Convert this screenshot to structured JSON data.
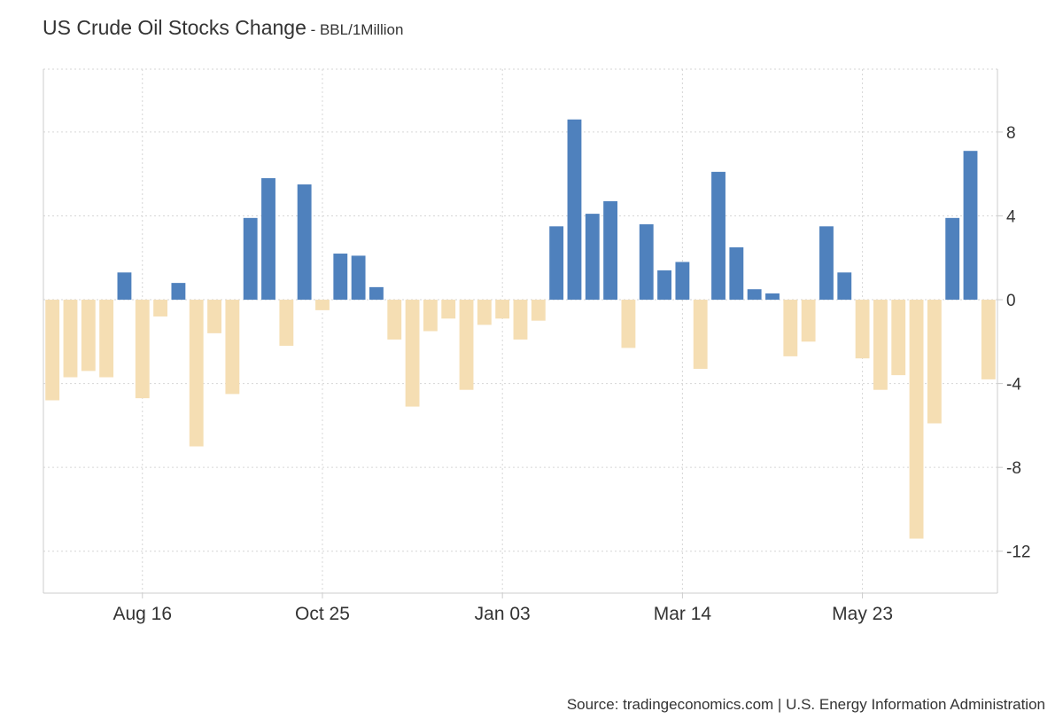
{
  "header": {
    "title": "US Crude Oil Stocks Change",
    "unit": " - BBL/1Million"
  },
  "footer": {
    "source": "Source: tradingeconomics.com | U.S. Energy Information Administration"
  },
  "colors": {
    "positive": "#4f81bd",
    "negative": "#f5deb3",
    "grid": "#d6d6d6",
    "axis": "#cccccc",
    "text": "#333333"
  },
  "chart_data": {
    "type": "bar",
    "title": "US Crude Oil Stocks Change",
    "ylabel": "BBL/1Million",
    "xlabel": "",
    "ylim": [
      -14,
      11
    ],
    "yticks": [
      8,
      4,
      0,
      -4,
      -8,
      -12
    ],
    "ytick_labels": [
      "8",
      "4",
      "0",
      "-4",
      "-8",
      "-12"
    ],
    "xtick_labels": [
      "Aug 16",
      "Oct 25",
      "Jan 03",
      "Mar 14",
      "May 23"
    ],
    "xtick_indices": [
      5,
      15,
      25,
      35,
      45
    ],
    "grid": true,
    "series": [
      {
        "name": "US Crude Oil Stocks Change",
        "values": [
          -4.8,
          -3.7,
          -3.4,
          -3.7,
          1.3,
          -4.7,
          -0.8,
          0.8,
          -7.0,
          -1.6,
          -4.5,
          3.9,
          5.8,
          -2.2,
          5.5,
          -0.5,
          2.2,
          2.1,
          0.6,
          -1.9,
          -5.1,
          -1.5,
          -0.9,
          -4.3,
          -1.2,
          -0.9,
          -1.9,
          -1.0,
          3.5,
          8.6,
          4.1,
          4.7,
          -2.3,
          3.6,
          1.4,
          1.8,
          -3.3,
          6.1,
          2.5,
          0.5,
          0.3,
          -2.7,
          -2.0,
          3.5,
          1.3,
          -2.8,
          -4.3,
          -3.6,
          -11.4,
          -5.9,
          3.9,
          7.1,
          -3.8
        ]
      }
    ]
  }
}
